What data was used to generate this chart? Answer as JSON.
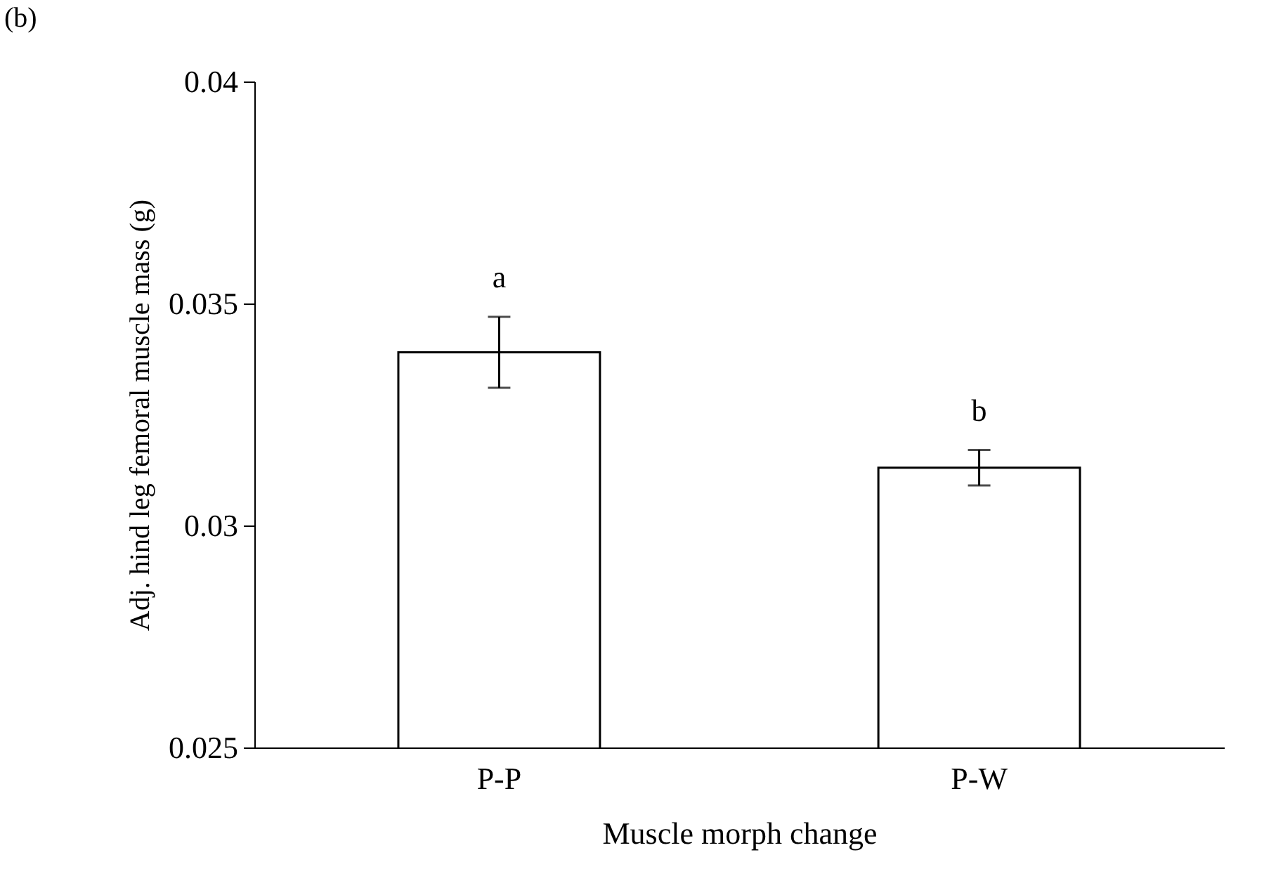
{
  "chart_data": {
    "type": "bar",
    "xlabel": "Muscle morph change",
    "ylabel": "Adj. hind leg femoral muscle mass (g)",
    "categories": [
      "P-P",
      "P-W"
    ],
    "values": [
      0.0339,
      0.0313
    ],
    "errors": [
      0.0008,
      0.0004
    ],
    "color": "#ffffff",
    "ylim": [
      0.025,
      0.04
    ],
    "yticks": [
      0.025,
      {
        "value": 0.03,
        "label": "0.03"
      },
      0.035,
      {
        "value": 0.04,
        "label": "0.04"
      }
    ],
    "grid": false,
    "annotations": [
      {
        "text": "a",
        "x": "P-P",
        "y": 0.0347
      },
      {
        "text": "b",
        "x": "P-W",
        "y": 0.0317
      },
      "(b)"
    ]
  }
}
